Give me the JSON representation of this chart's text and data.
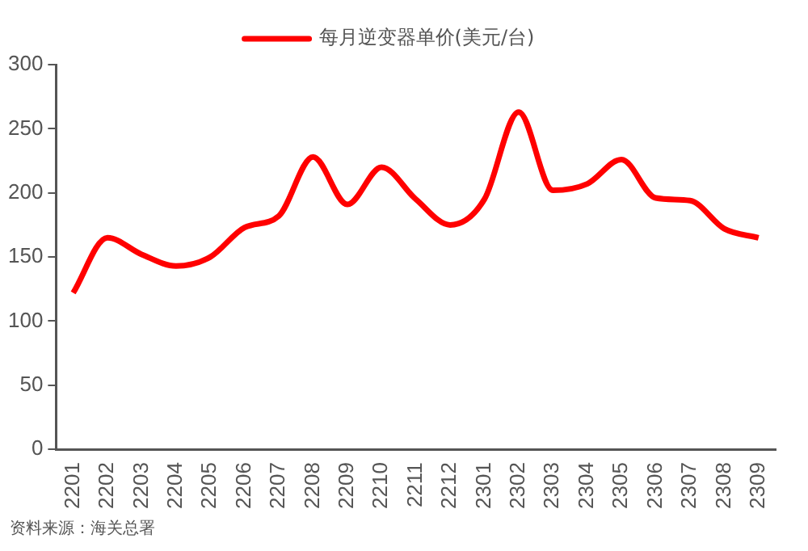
{
  "chart_data": {
    "type": "line",
    "categories": [
      "2201",
      "2202",
      "2203",
      "2204",
      "2205",
      "2206",
      "2207",
      "2208",
      "2209",
      "2210",
      "2211",
      "2212",
      "2301",
      "2302",
      "2303",
      "2304",
      "2305",
      "2306",
      "2307",
      "2308",
      "2309"
    ],
    "series": [
      {
        "name": "每月逆变器单价(美元/台)",
        "color": "#ff0000",
        "values": [
          122,
          165,
          152,
          143,
          150,
          173,
          182,
          228,
          191,
          220,
          195,
          175,
          195,
          263,
          202,
          207,
          226,
          196,
          194,
          172,
          165
        ]
      }
    ],
    "ylim": [
      0,
      300
    ],
    "yticks": [
      0,
      50,
      100,
      150,
      200,
      250,
      300
    ],
    "grid": false,
    "legend": "top",
    "marker": "none",
    "line_style": "solid",
    "annotations": [
      "资料来源：海关总署"
    ]
  }
}
